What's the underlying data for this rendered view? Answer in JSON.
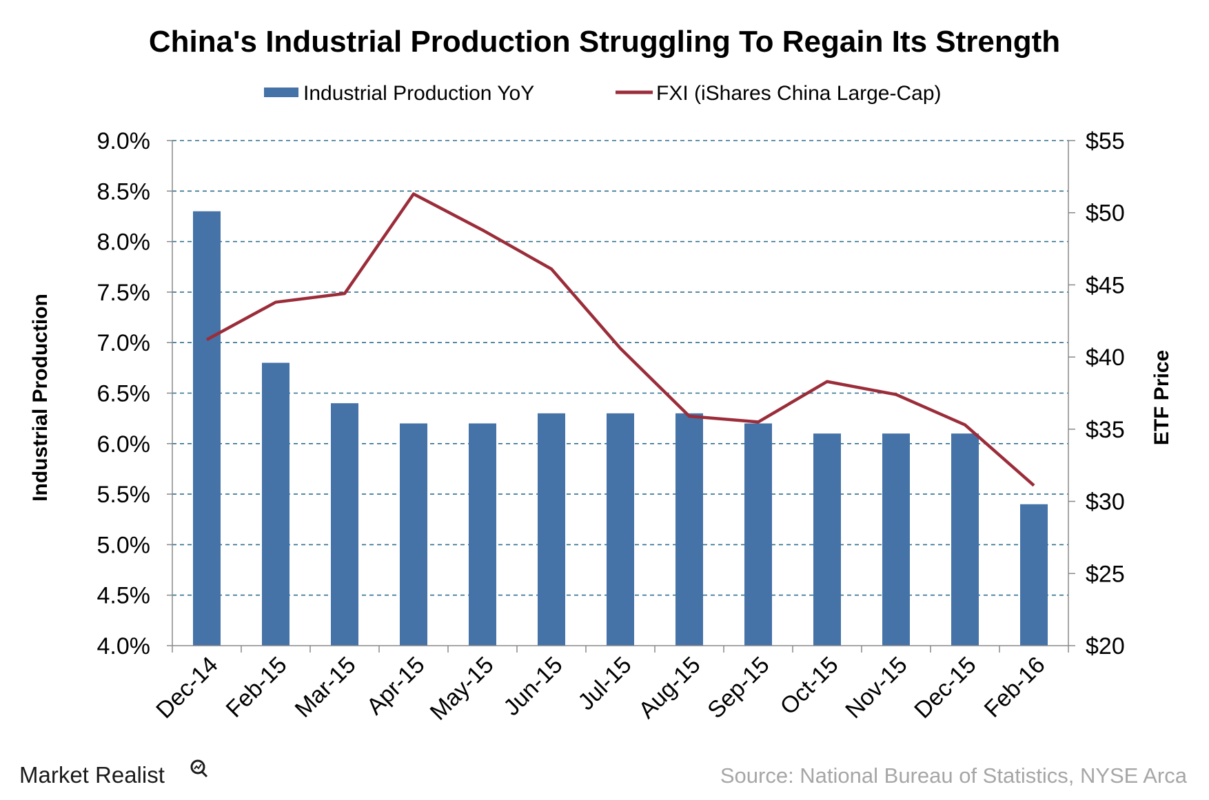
{
  "chart_data": {
    "type": "bar",
    "title": "China's Industrial Production Struggling To Regain Its Strength",
    "categories": [
      "Dec-14",
      "Feb-15",
      "Mar-15",
      "Apr-15",
      "May-15",
      "Jun-15",
      "Jul-15",
      "Aug-15",
      "Sep-15",
      "Oct-15",
      "Nov-15",
      "Dec-15",
      "Feb-16"
    ],
    "series": [
      {
        "name": "Industrial Production YoY",
        "kind": "bar",
        "axis": "left",
        "color": "#4572a7",
        "values": [
          8.3,
          6.8,
          6.4,
          6.2,
          6.2,
          6.3,
          6.3,
          6.3,
          6.2,
          6.1,
          6.1,
          6.1,
          5.4
        ]
      },
      {
        "name": "FXI (iShares China Large-Cap)",
        "kind": "line",
        "axis": "right",
        "color": "#9b2d3a",
        "values": [
          41.2,
          43.8,
          44.4,
          51.3,
          48.8,
          46.1,
          40.6,
          35.9,
          35.5,
          38.3,
          37.4,
          35.3,
          31.1
        ]
      }
    ],
    "ylabel": "Industrial Production",
    "y2label": "ETF Price",
    "ylim": [
      4.0,
      9.0
    ],
    "y2lim": [
      20,
      55
    ],
    "yticks": [
      "4.0%",
      "4.5%",
      "5.0%",
      "5.5%",
      "6.0%",
      "6.5%",
      "7.0%",
      "7.5%",
      "8.0%",
      "8.5%",
      "9.0%"
    ],
    "y2ticks": [
      "$20",
      "$25",
      "$30",
      "$35",
      "$40",
      "$45",
      "$50",
      "$55"
    ],
    "grid": true,
    "grid_style": "dashed",
    "legend_position": "top-center"
  },
  "footer": {
    "brand": "Market Realist",
    "source": "Source: National Bureau of Statistics, NYSE Arca"
  },
  "icons": {
    "brand_icon": "magnifier-chart-icon"
  }
}
